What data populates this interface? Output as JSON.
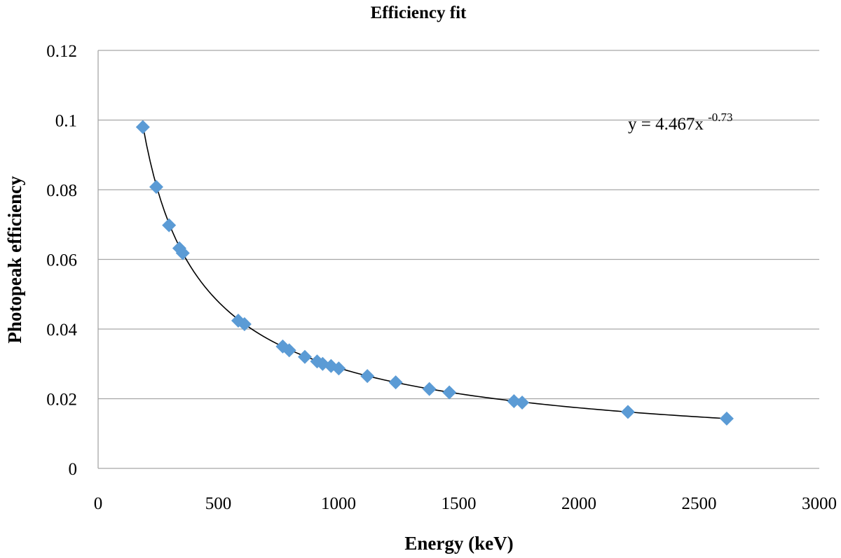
{
  "chart_data": {
    "type": "scatter",
    "title": "Efficiency fit",
    "xlabel": "Energy (keV)",
    "ylabel": "Photopeak efficiency",
    "xlim": [
      0,
      3000
    ],
    "ylim": [
      0,
      0.12
    ],
    "xticks": [
      "0",
      "500",
      "1000",
      "1500",
      "2000",
      "2500",
      "3000"
    ],
    "yticks": [
      "0",
      "0.02",
      "0.04",
      "0.06",
      "0.08",
      "0.1",
      "0.12"
    ],
    "grid": "horizontal",
    "legend": "none",
    "marker": "diamond",
    "marker_color": "#5B9BD5",
    "trendline_color": "#000000",
    "trendline": {
      "type": "power",
      "coefficient": 4.467,
      "exponent": -0.73,
      "x_range": [
        186,
        2615
      ],
      "label_prefix": "y = 4.467x",
      "label_exponent": "-0.73"
    },
    "series": [
      {
        "name": "Photopeak efficiency",
        "points": [
          {
            "x": 186,
            "y": 0.098
          },
          {
            "x": 242,
            "y": 0.0808
          },
          {
            "x": 295,
            "y": 0.0698
          },
          {
            "x": 338,
            "y": 0.0632
          },
          {
            "x": 352,
            "y": 0.0618
          },
          {
            "x": 583,
            "y": 0.0424
          },
          {
            "x": 609,
            "y": 0.0414
          },
          {
            "x": 768,
            "y": 0.035
          },
          {
            "x": 795,
            "y": 0.0339
          },
          {
            "x": 860,
            "y": 0.032
          },
          {
            "x": 911,
            "y": 0.0307
          },
          {
            "x": 934,
            "y": 0.03
          },
          {
            "x": 969,
            "y": 0.0294
          },
          {
            "x": 1001,
            "y": 0.0287
          },
          {
            "x": 1120,
            "y": 0.0265
          },
          {
            "x": 1238,
            "y": 0.0247
          },
          {
            "x": 1378,
            "y": 0.0228
          },
          {
            "x": 1461,
            "y": 0.0218
          },
          {
            "x": 1730,
            "y": 0.0193
          },
          {
            "x": 1764,
            "y": 0.0189
          },
          {
            "x": 2204,
            "y": 0.0162
          },
          {
            "x": 2615,
            "y": 0.0143
          }
        ]
      }
    ]
  }
}
